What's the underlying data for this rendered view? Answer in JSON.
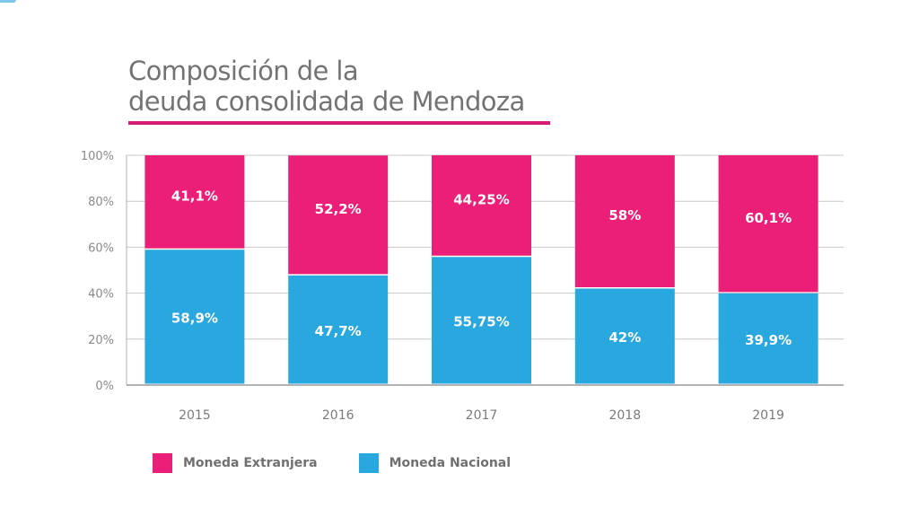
{
  "title": {
    "line1": "Composición de la",
    "line2": "deuda consolidada de Mendoza",
    "accent_color": "#d81b72"
  },
  "chart_data": {
    "type": "bar",
    "stacked": true,
    "title": "Composición de la deuda consolidada de Mendoza",
    "xlabel": "",
    "ylabel": "",
    "ylim": [
      0,
      100
    ],
    "yticks": [
      "0%",
      "20%",
      "40%",
      "60%",
      "80%",
      "100%"
    ],
    "ytick_values": [
      0,
      20,
      40,
      60,
      80,
      100
    ],
    "grid": true,
    "legend_position": "bottom-left",
    "categories": [
      "2015",
      "2016",
      "2017",
      "2018",
      "2019"
    ],
    "series": [
      {
        "name": "Moneda Nacional",
        "color": "#29a8e0",
        "values": [
          58.9,
          47.7,
          55.75,
          42,
          39.9
        ],
        "labels": [
          "58,9%",
          "47,7%",
          "55,75%",
          "42%",
          "39,9%"
        ]
      },
      {
        "name": "Moneda Extranjera",
        "color": "#ec1f78",
        "values": [
          41.1,
          52.2,
          44.25,
          58,
          60.1
        ],
        "labels": [
          "41,1%",
          "52,2%",
          "44,25%",
          "58%",
          "60,1%"
        ]
      }
    ]
  },
  "legend": {
    "items": [
      {
        "label": "Moneda Extranjera",
        "color": "#ec1f78"
      },
      {
        "label": "Moneda Nacional",
        "color": "#29a8e0"
      }
    ]
  }
}
